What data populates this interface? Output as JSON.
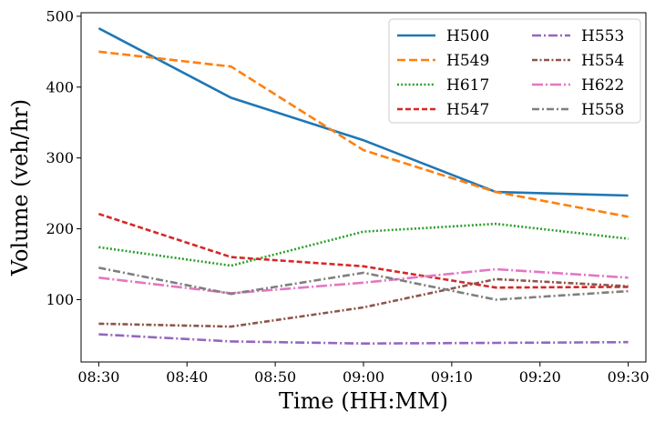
{
  "chart_data": {
    "type": "line",
    "title": "",
    "xlabel": "Time (HH:MM)",
    "ylabel": "Volume (veh/hr)",
    "x_points": [
      "08:30",
      "08:45",
      "09:00",
      "09:15",
      "09:30"
    ],
    "x_tick_labels": [
      "08:30",
      "08:40",
      "08:50",
      "09:00",
      "09:10",
      "09:20",
      "09:30"
    ],
    "y_ticks": [
      100,
      200,
      300,
      400,
      500
    ],
    "xlim": [
      "08:28",
      "09:32"
    ],
    "ylim": [
      12,
      505
    ],
    "grid": false,
    "legend_placement": "top-right",
    "legend_columns": 2,
    "series": [
      {
        "name": "H500",
        "values": [
          483,
          385,
          325,
          252,
          247
        ],
        "color": "#1f77b4",
        "style": "solid"
      },
      {
        "name": "H549",
        "values": [
          450,
          429,
          311,
          252,
          217
        ],
        "color": "#ff7f0e",
        "style": "dashed"
      },
      {
        "name": "H617",
        "values": [
          174,
          148,
          196,
          207,
          186
        ],
        "color": "#2ca02c",
        "style": "dotted"
      },
      {
        "name": "H547",
        "values": [
          221,
          160,
          147,
          117,
          118
        ],
        "color": "#d62728",
        "style": "densely-dashed"
      },
      {
        "name": "H553",
        "values": [
          51,
          41,
          38,
          39,
          40
        ],
        "color": "#9467bd",
        "style": "dash-dot"
      },
      {
        "name": "H554",
        "values": [
          66,
          62,
          89,
          129,
          119
        ],
        "color": "#8c564b",
        "style": "dense-dash-dot"
      },
      {
        "name": "H622",
        "values": [
          131,
          109,
          124,
          143,
          131
        ],
        "color": "#e377c2",
        "style": "long-dash-dot"
      },
      {
        "name": "H558",
        "values": [
          145,
          108,
          138,
          100,
          112
        ],
        "color": "#7f7f7f",
        "style": "dash-dot-2"
      }
    ]
  }
}
